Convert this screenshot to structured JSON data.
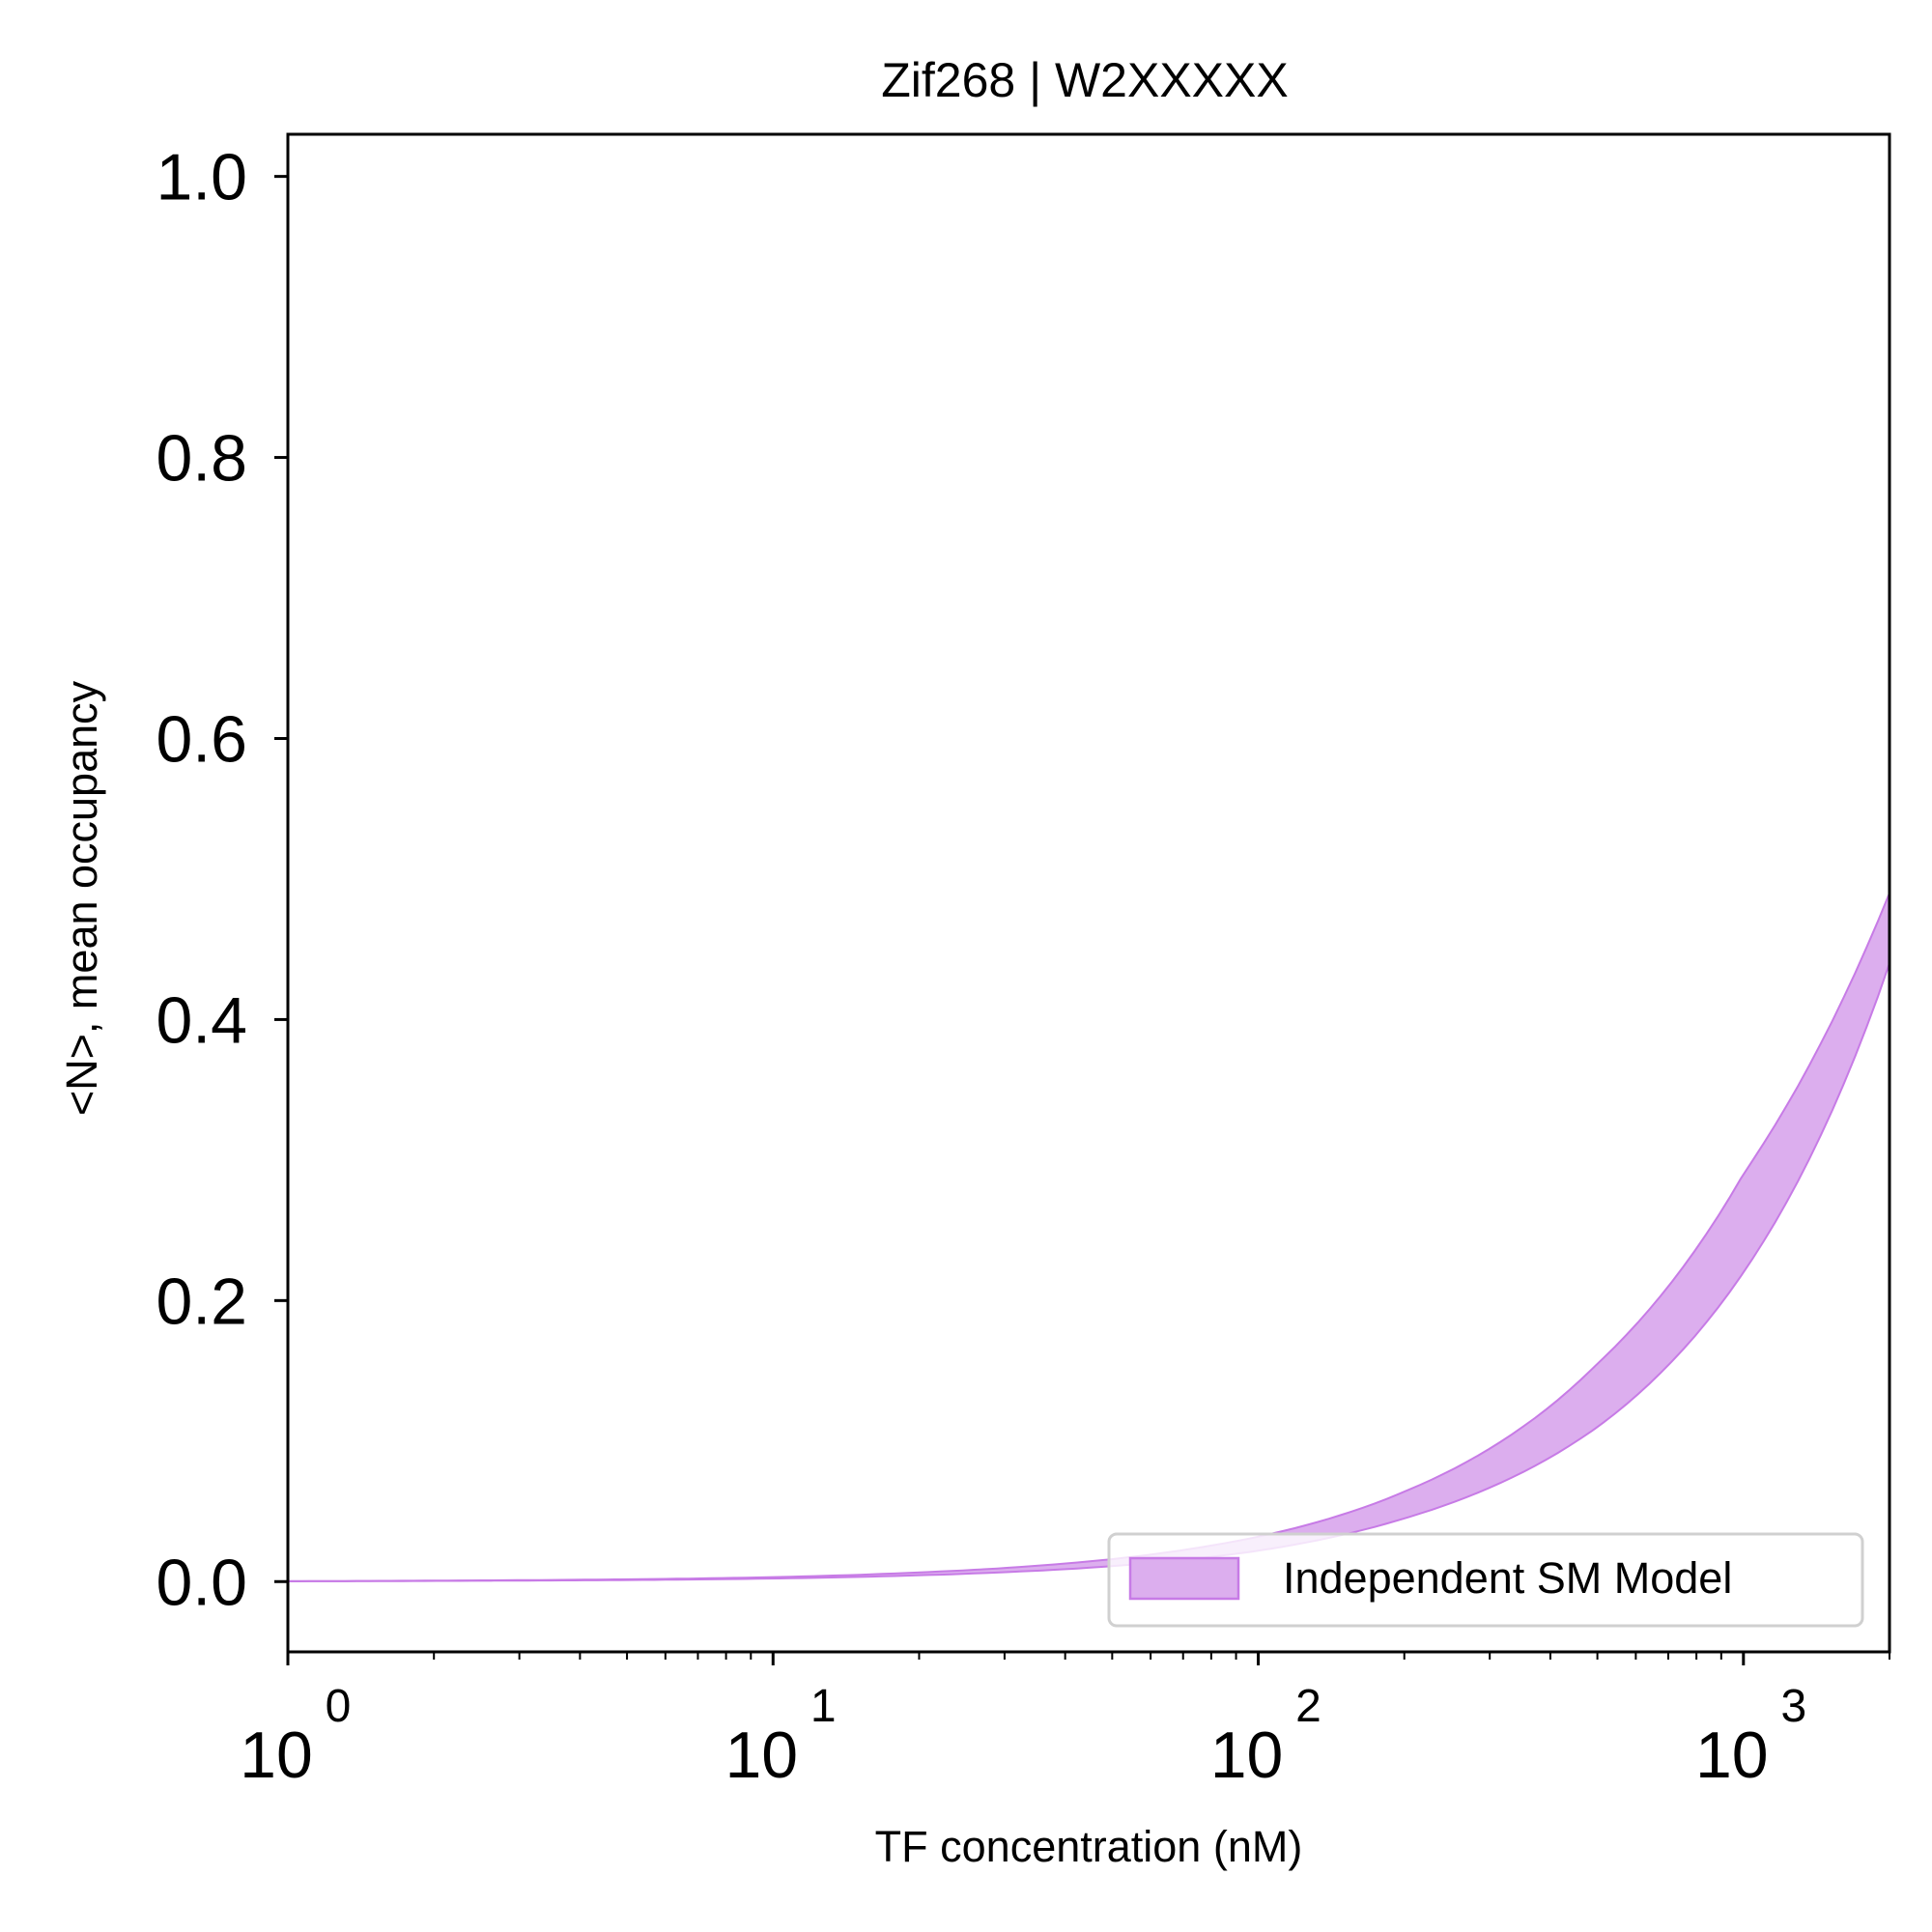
{
  "chart_data": {
    "type": "area",
    "title": "Zif268 | W2XXXXX",
    "xlabel": "TF concentration (nM)",
    "ylabel": "<N>, mean occupancy",
    "xscale": "log",
    "xlim": [
      1,
      2000
    ],
    "ylim": [
      -0.05,
      1.03
    ],
    "x_ticks": [
      {
        "value": 1,
        "base": "10",
        "exp": "0"
      },
      {
        "value": 10,
        "base": "10",
        "exp": "1"
      },
      {
        "value": 100,
        "base": "10",
        "exp": "2"
      },
      {
        "value": 1000,
        "base": "10",
        "exp": "3"
      }
    ],
    "y_ticks": [
      {
        "value": 0.0,
        "label": "0.0"
      },
      {
        "value": 0.2,
        "label": "0.2"
      },
      {
        "value": 0.4,
        "label": "0.4"
      },
      {
        "value": 0.6,
        "label": "0.6"
      },
      {
        "value": 0.8,
        "label": "0.8"
      },
      {
        "value": 1.0,
        "label": "1.0"
      }
    ],
    "grid": false,
    "legend_position": "lower-right",
    "series": [
      {
        "name": "Independent SM Model",
        "color": "#dcaeee",
        "edge_color": "#c77be6",
        "x": [
          1,
          2,
          5,
          10,
          20,
          50,
          100,
          200,
          500,
          1000,
          2000
        ],
        "lower": [
          0.0002,
          0.0005,
          0.0011,
          0.0022,
          0.0045,
          0.011,
          0.022,
          0.045,
          0.11,
          0.22,
          0.44
        ],
        "upper": [
          0.0003,
          0.0007,
          0.0016,
          0.0032,
          0.0065,
          0.016,
          0.032,
          0.064,
          0.155,
          0.29,
          0.49
        ]
      }
    ]
  }
}
